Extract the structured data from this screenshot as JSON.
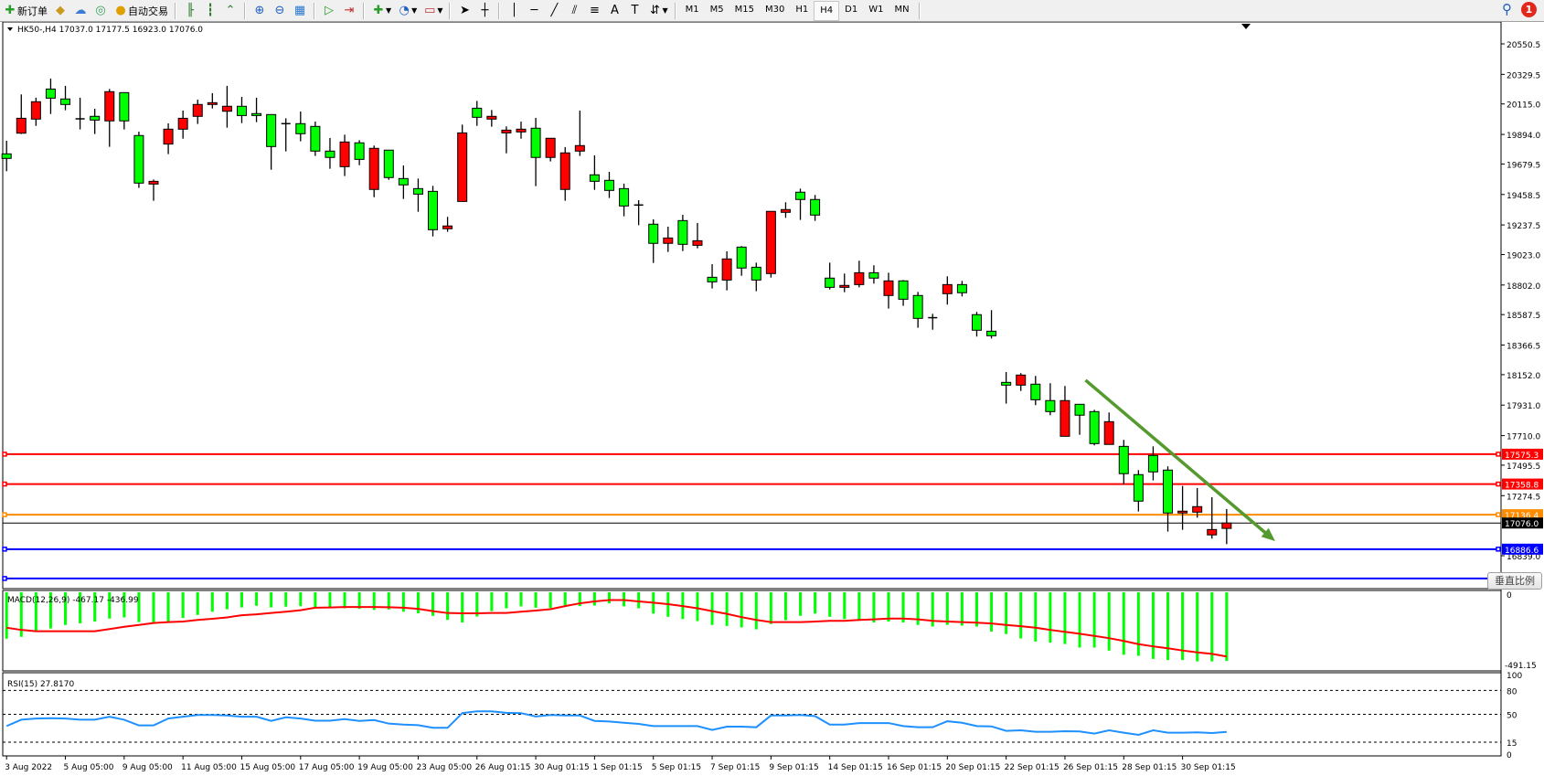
{
  "toolbar": {
    "new_order": "新订单",
    "auto_trade": "自动交易",
    "timeframes": [
      "M1",
      "M5",
      "M15",
      "M30",
      "H1",
      "H4",
      "D1",
      "W1",
      "MN"
    ],
    "active_timeframe": "H4",
    "notification_count": "1"
  },
  "chart": {
    "header": "HK50-,H4  17037.0 17177.5 16923.0 17076.0",
    "colors": {
      "bull": "#ff0000",
      "bear": "#00ff00",
      "outline": "#000000",
      "macd_hist": "#00ff00",
      "macd_signal": "#ff0000",
      "rsi": "#1e90ff",
      "trend_arrow": "#559a2e"
    },
    "price_ticks": [
      "20550.5",
      "20329.5",
      "20115.0",
      "19894.0",
      "19679.5",
      "19458.5",
      "19237.5",
      "19023.0",
      "18802.0",
      "18587.5",
      "18366.5",
      "18152.0",
      "17931.0",
      "17710.0",
      "17495.5",
      "17274.5",
      "16839.0"
    ],
    "price_range": [
      16839.0,
      20550.5
    ],
    "hlines": [
      {
        "price": 17575.3,
        "label": "17575.3",
        "color": "#ff0000"
      },
      {
        "price": 17358.8,
        "label": "17358.8",
        "color": "#ff0000"
      },
      {
        "price": 17136.4,
        "label": "17136.4",
        "color": "#ff8c00"
      },
      {
        "price": 16886.6,
        "label": "16886.6",
        "color": "#0000ff"
      },
      {
        "price": 16674,
        "label": "",
        "color": "#0000ff"
      }
    ],
    "bid": {
      "price": 17076.0,
      "label": "17076.0"
    },
    "trendline": {
      "from": {
        "bar": 73.4,
        "price": 18112
      },
      "to": {
        "bar": 86.3,
        "price": 16945
      }
    },
    "vertical_scale_button": "垂直比例",
    "candles_ohlc": [
      [
        19753,
        19848,
        19627,
        19720
      ],
      [
        19903,
        20184,
        19897,
        20011
      ],
      [
        20005,
        20160,
        19956,
        20131
      ],
      [
        20223,
        20299,
        20042,
        20157
      ],
      [
        20151,
        20246,
        20069,
        20111
      ],
      [
        20007,
        20160,
        19930,
        20007
      ],
      [
        20025,
        20080,
        19897,
        19998
      ],
      [
        19992,
        20223,
        19804,
        20204
      ],
      [
        20197,
        20197,
        19930,
        19992
      ],
      [
        19886,
        19914,
        19506,
        19541
      ],
      [
        19534,
        19567,
        19413,
        19554
      ],
      [
        19824,
        19974,
        19751,
        19932
      ],
      [
        19932,
        20067,
        19863,
        20011
      ],
      [
        20025,
        20146,
        19970,
        20111
      ],
      [
        20111,
        20193,
        20082,
        20124
      ],
      [
        20062,
        20246,
        19943,
        20098
      ],
      [
        20098,
        20166,
        19976,
        20031
      ],
      [
        20045,
        20160,
        19983,
        20031
      ],
      [
        20038,
        20038,
        19638,
        19806
      ],
      [
        19972,
        20011,
        19771,
        19972
      ],
      [
        19972,
        20060,
        19844,
        19899
      ],
      [
        19952,
        19987,
        19738,
        19773
      ],
      [
        19773,
        19868,
        19645,
        19727
      ],
      [
        19660,
        19892,
        19592,
        19839
      ],
      [
        19833,
        19852,
        19671,
        19713
      ],
      [
        19495,
        19813,
        19439,
        19793
      ],
      [
        19780,
        19780,
        19565,
        19581
      ],
      [
        19574,
        19669,
        19426,
        19528
      ],
      [
        19501,
        19574,
        19333,
        19461
      ],
      [
        19481,
        19521,
        19154,
        19203
      ],
      [
        19210,
        19296,
        19188,
        19230
      ],
      [
        19408,
        19965,
        19408,
        19905
      ],
      [
        20084,
        20137,
        19956,
        20018
      ],
      [
        20005,
        20071,
        19950,
        20025
      ],
      [
        19905,
        19952,
        19757,
        19925
      ],
      [
        19912,
        19987,
        19863,
        19932
      ],
      [
        19939,
        20014,
        19519,
        19727
      ],
      [
        19727,
        19866,
        19698,
        19866
      ],
      [
        19495,
        19802,
        19413,
        19760
      ],
      [
        19773,
        20067,
        19738,
        19813
      ],
      [
        19601,
        19742,
        19492,
        19554
      ],
      [
        19561,
        19623,
        19433,
        19488
      ],
      [
        19501,
        19537,
        19300,
        19375
      ],
      [
        19382,
        19417,
        19236,
        19382
      ],
      [
        19243,
        19278,
        18962,
        19104
      ],
      [
        19104,
        19225,
        19042,
        19143
      ],
      [
        19269,
        19311,
        19048,
        19097
      ],
      [
        19090,
        19252,
        19068,
        19123
      ],
      [
        18858,
        18953,
        18777,
        18825
      ],
      [
        18838,
        19046,
        18763,
        18991
      ],
      [
        19077,
        19084,
        18869,
        18925
      ],
      [
        18931,
        18964,
        18757,
        18838
      ],
      [
        18885,
        19336,
        18856,
        19336
      ],
      [
        19329,
        19402,
        19289,
        19349
      ],
      [
        19475,
        19501,
        19274,
        19422
      ],
      [
        19422,
        19455,
        19267,
        19309
      ],
      [
        18852,
        18964,
        18770,
        18785
      ],
      [
        18785,
        18885,
        18750,
        18799
      ],
      [
        18805,
        18978,
        18785,
        18891
      ],
      [
        18891,
        18945,
        18812,
        18852
      ],
      [
        18726,
        18891,
        18631,
        18832
      ],
      [
        18832,
        18838,
        18651,
        18699
      ],
      [
        18726,
        18752,
        18492,
        18560
      ],
      [
        18565,
        18593,
        18478,
        18565
      ],
      [
        18739,
        18865,
        18660,
        18805
      ],
      [
        18805,
        18832,
        18719,
        18746
      ],
      [
        18587,
        18607,
        18428,
        18474
      ],
      [
        18467,
        18620,
        18414,
        18434
      ],
      [
        18096,
        18171,
        17942,
        18076
      ],
      [
        18076,
        18163,
        18034,
        18149
      ],
      [
        18083,
        18143,
        17931,
        17970
      ],
      [
        17964,
        18090,
        17858,
        17884
      ],
      [
        17705,
        18070,
        17705,
        17964
      ],
      [
        17937,
        17937,
        17716,
        17858
      ],
      [
        17884,
        17897,
        17639,
        17652
      ],
      [
        17646,
        17878,
        17646,
        17811
      ],
      [
        17632,
        17679,
        17356,
        17434
      ],
      [
        17427,
        17460,
        17160,
        17235
      ],
      [
        17566,
        17632,
        17385,
        17447
      ],
      [
        17460,
        17487,
        17014,
        17149
      ],
      [
        17149,
        17345,
        17027,
        17162
      ],
      [
        17155,
        17330,
        17115,
        17195
      ],
      [
        16990,
        17263,
        16963,
        17029
      ],
      [
        17037,
        17177.5,
        16923,
        17076
      ]
    ]
  },
  "macd": {
    "label": "MACD(12,26,9) -467.17 -436.99",
    "ticks": [
      "0",
      "-491.15"
    ],
    "range": [
      -491.15,
      0
    ],
    "histogram": [
      -316,
      -303,
      -263,
      -246,
      -222,
      -211,
      -199,
      -179,
      -171,
      -203,
      -205,
      -203,
      -175,
      -154,
      -132,
      -115,
      -103,
      -92,
      -103,
      -98,
      -94,
      -103,
      -109,
      -109,
      -113,
      -120,
      -117,
      -132,
      -143,
      -160,
      -188,
      -205,
      -165,
      -128,
      -109,
      -96,
      -105,
      -107,
      -100,
      -94,
      -90,
      -75,
      -96,
      -109,
      -145,
      -167,
      -182,
      -196,
      -222,
      -229,
      -239,
      -252,
      -216,
      -190,
      -160,
      -145,
      -167,
      -182,
      -194,
      -205,
      -199,
      -205,
      -222,
      -233,
      -222,
      -227,
      -233,
      -267,
      -284,
      -314,
      -335,
      -342,
      -352,
      -376,
      -376,
      -397,
      -425,
      -432,
      -453,
      -461,
      -461,
      -470,
      -470,
      -467.17
    ],
    "signal": [
      -241,
      -256,
      -265,
      -265,
      -265,
      -265,
      -265,
      -250,
      -235,
      -222,
      -209,
      -203,
      -199,
      -188,
      -180,
      -171,
      -156,
      -150,
      -141,
      -132,
      -122,
      -105,
      -103,
      -100,
      -100,
      -100,
      -102,
      -105,
      -113,
      -128,
      -141,
      -143,
      -143,
      -141,
      -141,
      -132,
      -124,
      -115,
      -94,
      -75,
      -62,
      -53,
      -53,
      -62,
      -71,
      -81,
      -94,
      -109,
      -128,
      -147,
      -169,
      -188,
      -203,
      -203,
      -203,
      -199,
      -194,
      -194,
      -188,
      -184,
      -179,
      -179,
      -184,
      -194,
      -199,
      -203,
      -207,
      -212,
      -222,
      -231,
      -241,
      -256,
      -269,
      -282,
      -297,
      -312,
      -331,
      -353,
      -368,
      -381,
      -396,
      -409,
      -419,
      -436.99
    ]
  },
  "rsi": {
    "label": "RSI(15) 27.8170",
    "ticks": [
      "100",
      "80",
      "50",
      "15",
      "0"
    ],
    "levels": [
      80,
      50,
      15
    ],
    "values": [
      35.2,
      43.2,
      44.7,
      45.1,
      44.7,
      43.2,
      43.2,
      47.0,
      43.2,
      36.0,
      36.0,
      44.7,
      47.0,
      49.2,
      49.2,
      48.5,
      47.0,
      47.0,
      41.7,
      46.2,
      44.7,
      42.0,
      42.0,
      43.9,
      41.7,
      42.8,
      38.3,
      37.1,
      36.4,
      33.0,
      33.0,
      51.5,
      53.8,
      53.8,
      51.9,
      51.5,
      47.3,
      49.2,
      48.5,
      48.5,
      41.7,
      40.9,
      39.4,
      37.9,
      35.2,
      35.2,
      35.2,
      35.2,
      30.3,
      34.5,
      34.5,
      33.7,
      48.5,
      48.5,
      49.2,
      47.7,
      37.1,
      37.1,
      39.0,
      39.0,
      39.0,
      35.2,
      33.7,
      33.7,
      41.3,
      39.4,
      35.2,
      34.8,
      29.2,
      29.9,
      28.0,
      28.0,
      28.8,
      28.4,
      25.8,
      29.9,
      26.9,
      24.2,
      29.9,
      26.9,
      26.9,
      27.3,
      26.5,
      27.817
    ]
  },
  "time_axis": [
    "3 Aug 2022",
    "5 Aug 05:00",
    "9 Aug 05:00",
    "11 Aug 05:00",
    "15 Aug 05:00",
    "17 Aug 05:00",
    "19 Aug 05:00",
    "23 Aug 05:00",
    "26 Aug 01:15",
    "30 Aug 01:15",
    "1 Sep 01:15",
    "5 Sep 01:15",
    "7 Sep 01:15",
    "9 Sep 01:15",
    "14 Sep 01:15",
    "16 Sep 01:15",
    "20 Sep 01:15",
    "22 Sep 01:15",
    "26 Sep 01:15",
    "28 Sep 01:15",
    "30 Sep 01:15"
  ]
}
